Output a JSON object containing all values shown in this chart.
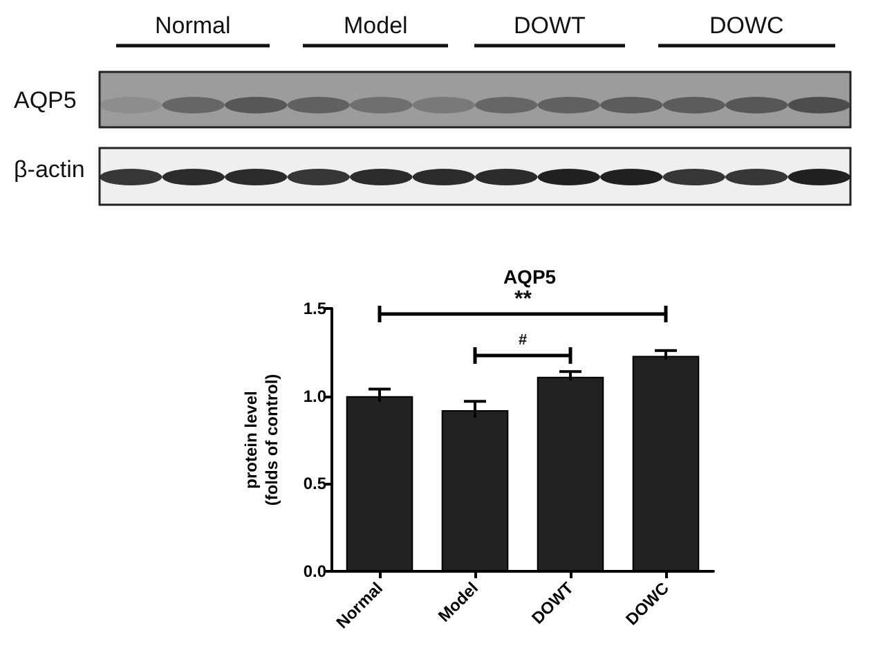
{
  "chart_data": {
    "type": "bar",
    "title": "AQP5",
    "ylabel": "protein level\n(folds of control)",
    "categories": [
      "Normal",
      "Model",
      "DOWT",
      "DOWC"
    ],
    "values": [
      1.0,
      0.92,
      1.11,
      1.23
    ],
    "errors": [
      0.04,
      0.05,
      0.03,
      0.03
    ],
    "color": "#222222",
    "ylim": [
      0,
      1.5
    ],
    "yticks": [
      {
        "value": 0,
        "label": "0.0"
      },
      {
        "value": 0.5,
        "label": "0.5"
      },
      {
        "value": 1,
        "label": "1.0"
      },
      {
        "value": 1.5,
        "label": "1.5"
      }
    ],
    "annotations": [
      "AQP5",
      "β-actin",
      "**",
      "#"
    ],
    "grid": false
  }
}
